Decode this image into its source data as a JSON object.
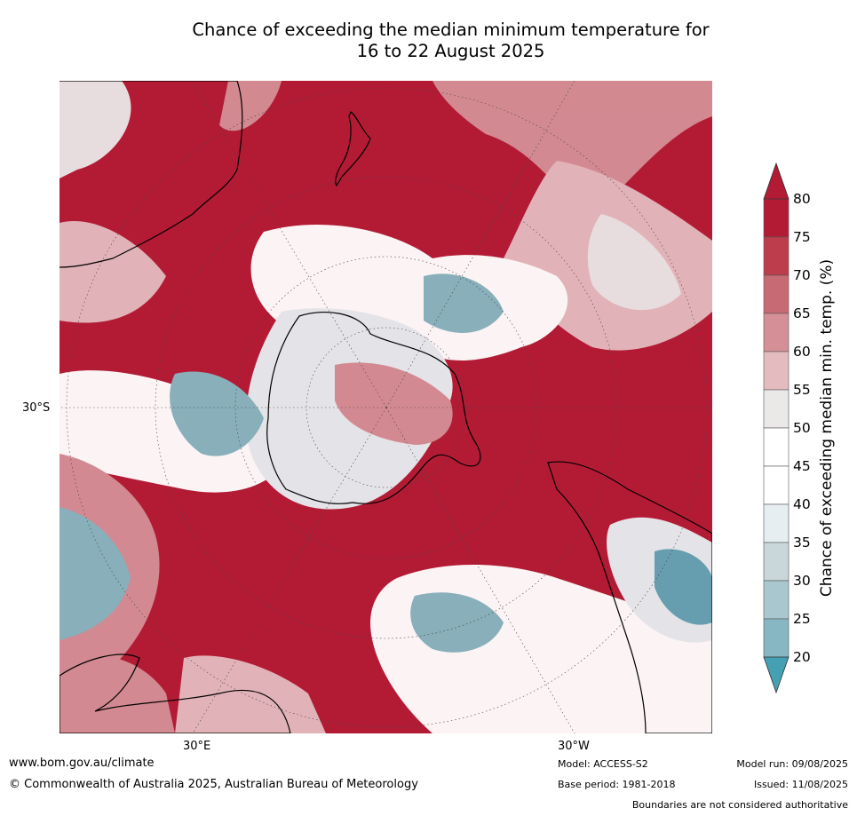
{
  "title": {
    "line1": "Chance of exceeding the median minimum temperature for",
    "line2": "16 to 22 August 2025"
  },
  "axis_labels": {
    "lat_30s": "30°S",
    "lon_30e": "30°E",
    "lon_30w": "30°W"
  },
  "colorbar": {
    "label": "Chance of exceeding median min. temp. (%)",
    "ticks": [
      "80",
      "75",
      "70",
      "65",
      "60",
      "55",
      "50",
      "45",
      "40",
      "35",
      "30",
      "25",
      "20"
    ],
    "colors": [
      "#b31b35",
      "#bd3d4d",
      "#c86a73",
      "#d58f96",
      "#e4bcc0",
      "#ebe8e8",
      "#ffffff",
      "#ffffff",
      "#e7eef1",
      "#c9d7da",
      "#a8c7ce",
      "#86b7c2",
      "#62a6b6"
    ],
    "over_color": "#b31b35",
    "under_color": "#45a0b4"
  },
  "footer": {
    "website": "www.bom.gov.au/climate",
    "copyright": "© Commonwealth of Australia 2025, Australian Bureau of Meteorology",
    "model": "Model: ACCESS-S2",
    "base_period": "Base period: 1981-2018",
    "model_run": "Model run: 09/08/2025",
    "issued": "Issued: 11/08/2025",
    "disclaimer": "Boundaries are not considered authoritative"
  }
}
